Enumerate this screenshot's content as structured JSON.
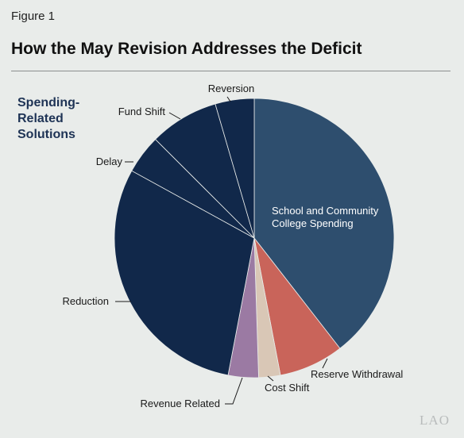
{
  "figure_label": "Figure 1",
  "title": "How the May Revision Addresses the Deficit",
  "logo": "LAO",
  "chart_data": {
    "type": "pie",
    "group_label": [
      "Spending-",
      "Related",
      "Solutions"
    ],
    "slices": [
      {
        "label": "School and Community College Spending",
        "label_lines": [
          "School and Community",
          "College Spending"
        ],
        "value": 39.5,
        "color": "#2e4e6e"
      },
      {
        "label": "Reserve Withdrawal",
        "label_lines": [
          "Reserve Withdrawal"
        ],
        "value": 7.5,
        "color": "#c9645a"
      },
      {
        "label": "Cost Shift",
        "label_lines": [
          "Cost Shift"
        ],
        "value": 2.5,
        "color": "#d9c7b6"
      },
      {
        "label": "Revenue Related",
        "label_lines": [
          "Revenue Related"
        ],
        "value": 3.5,
        "color": "#9b7aa3"
      },
      {
        "label": "Reduction",
        "label_lines": [
          "Reduction"
        ],
        "value": 30.0,
        "color": "#11284a"
      },
      {
        "label": "Delay",
        "label_lines": [
          "Delay"
        ],
        "value": 4.5,
        "color": "#11284a"
      },
      {
        "label": "Fund Shift",
        "label_lines": [
          "Fund Shift"
        ],
        "value": 8.0,
        "color": "#11284a"
      },
      {
        "label": "Reversion",
        "label_lines": [
          "Reversion"
        ],
        "value": 4.5,
        "color": "#11284a"
      }
    ]
  }
}
